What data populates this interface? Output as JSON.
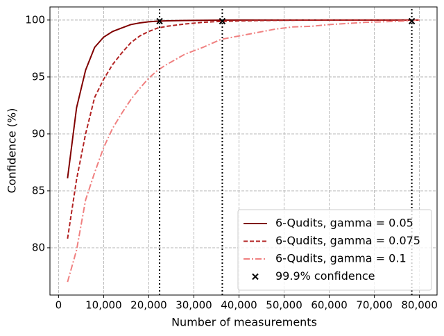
{
  "chart_data": {
    "type": "line",
    "x_label": "Number of measurements",
    "y_label": "Confidence (%)",
    "x": [
      2000,
      4000,
      6000,
      8000,
      10000,
      12000,
      14000,
      16000,
      18000,
      20000,
      22000,
      24000,
      28000,
      32000,
      36000,
      40000,
      44000,
      48000,
      52000,
      56000,
      60000,
      64000,
      68000,
      72000,
      76000,
      80000
    ],
    "series": [
      {
        "name": "6-Qudits, gamma = 0.05",
        "color": "#800000",
        "style": "solid",
        "values": [
          86.1,
          92.3,
          95.6,
          97.6,
          98.5,
          99.0,
          99.3,
          99.6,
          99.75,
          99.85,
          99.9,
          99.93,
          99.96,
          99.98,
          99.99,
          100,
          100,
          100,
          100,
          100,
          100,
          100,
          100,
          100,
          100,
          100
        ]
      },
      {
        "name": "6-Qudits, gamma = 0.075",
        "color": "#b22222",
        "style": "dashed",
        "values": [
          80.8,
          86.0,
          90.0,
          93.2,
          94.8,
          96.1,
          97.1,
          98.0,
          98.6,
          99.0,
          99.3,
          99.45,
          99.65,
          99.8,
          99.88,
          99.92,
          99.95,
          99.97,
          99.98,
          99.99,
          100,
          100,
          100,
          100,
          100,
          100
        ]
      },
      {
        "name": "6-Qudits, gamma = 0.1",
        "color": "#f08080",
        "style": "dashdot",
        "values": [
          77.0,
          79.8,
          84.2,
          86.6,
          88.8,
          90.5,
          91.8,
          93.0,
          94.0,
          94.9,
          95.6,
          96.1,
          97.0,
          97.6,
          98.3,
          98.6,
          98.9,
          99.2,
          99.4,
          99.45,
          99.6,
          99.7,
          99.8,
          99.85,
          99.9,
          100
        ]
      },
      {
        "name": "99.9% confidence",
        "color": "#000000",
        "style": "marker",
        "x": [
          22400,
          36300,
          78300
        ],
        "values": [
          99.9,
          99.9,
          99.9
        ]
      }
    ],
    "xlim": [
      -1900,
      83900
    ],
    "ylim": [
      75.85,
      101.15
    ],
    "xticks": [
      0,
      {
        "value": 10000,
        "label": "10,000"
      },
      {
        "value": 20000,
        "label": "20,000"
      },
      {
        "value": 30000,
        "label": "30,000"
      },
      {
        "value": 40000,
        "label": "40,000"
      },
      {
        "value": 50000,
        "label": "50,000"
      },
      {
        "value": 60000,
        "label": "60,000"
      },
      {
        "value": 70000,
        "label": "70,000"
      },
      {
        "value": 80000,
        "label": "80,000"
      }
    ],
    "yticks": [
      80,
      85,
      90,
      95,
      100
    ],
    "grid": true,
    "legend": "lower right"
  }
}
